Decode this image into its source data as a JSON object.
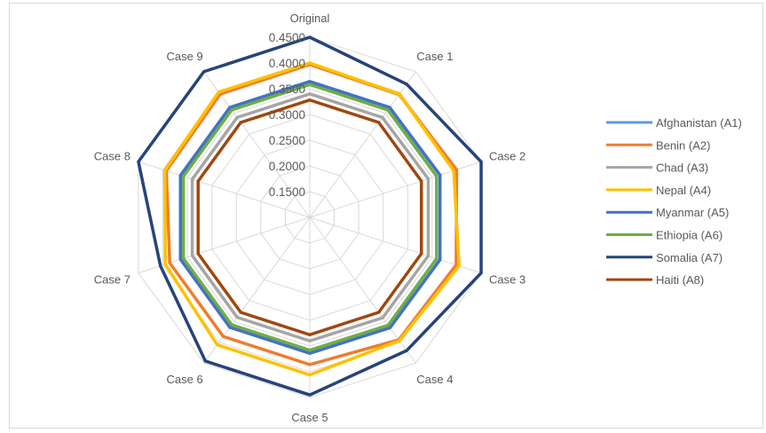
{
  "chart_data": {
    "type": "radar",
    "categories": [
      "Original",
      "Case 1",
      "Case 2",
      "Case 3",
      "Case 4",
      "Case 5",
      "Case 6",
      "Case 7",
      "Case 8",
      "Case 9"
    ],
    "r_range": [
      0.1,
      0.45
    ],
    "r_ticks": [
      "0.1500",
      "0.2000",
      "0.2500",
      "0.3000",
      "0.3500",
      "0.4000",
      "0.4500"
    ],
    "grid": true,
    "legend_position": "right",
    "series": [
      {
        "name": "Afghanistan (A1)",
        "color": "#5b9bd5",
        "values": [
          0.364,
          0.364,
          0.366,
          0.366,
          0.365,
          0.364,
          0.364,
          0.364,
          0.364,
          0.364
        ]
      },
      {
        "name": "Benin (A2)",
        "color": "#ed7d31",
        "values": [
          0.397,
          0.395,
          0.4,
          0.399,
          0.394,
          0.386,
          0.386,
          0.386,
          0.393,
          0.396
        ]
      },
      {
        "name": "Chad (A3)",
        "color": "#a5a5a5",
        "values": [
          0.34,
          0.34,
          0.342,
          0.342,
          0.341,
          0.34,
          0.34,
          0.34,
          0.34,
          0.34
        ]
      },
      {
        "name": "Nepal (A4)",
        "color": "#ffc000",
        "values": [
          0.4,
          0.396,
          0.394,
          0.405,
          0.396,
          0.406,
          0.406,
          0.395,
          0.396,
          0.401
        ]
      },
      {
        "name": "Myanmar (A5)",
        "color": "#4472c4",
        "values": [
          0.364,
          0.364,
          0.366,
          0.366,
          0.365,
          0.364,
          0.364,
          0.364,
          0.364,
          0.364
        ]
      },
      {
        "name": "Ethiopia (A6)",
        "color": "#70ad47",
        "values": [
          0.358,
          0.358,
          0.359,
          0.359,
          0.359,
          0.358,
          0.358,
          0.358,
          0.358,
          0.358
        ]
      },
      {
        "name": "Somalia (A7)",
        "color": "#264478",
        "values": [
          0.45,
          0.42,
          0.45,
          0.45,
          0.42,
          0.445,
          0.445,
          0.405,
          0.45,
          0.45
        ]
      },
      {
        "name": "Haiti (A8)",
        "color": "#9e480e",
        "values": [
          0.328,
          0.328,
          0.328,
          0.328,
          0.328,
          0.328,
          0.328,
          0.328,
          0.328,
          0.328
        ]
      }
    ]
  }
}
